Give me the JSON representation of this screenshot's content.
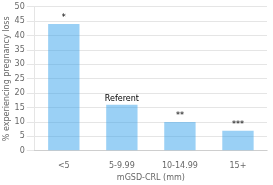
{
  "chart_data": {
    "type": "bar",
    "categories": [
      "<5",
      "5-9.99",
      "10-14.99",
      "15+"
    ],
    "values": [
      44,
      16,
      10,
      7
    ],
    "xlabel": "mGSD-CRL (mm)",
    "ylabel": "% experiencing pregnancy loss",
    "ylim": [
      0,
      50
    ],
    "yticks": [
      0,
      5,
      10,
      15,
      20,
      25,
      30,
      35,
      40,
      45,
      50
    ],
    "grid": true,
    "annotations": [
      {
        "text": "*",
        "category": "<5"
      },
      {
        "text": "Referent",
        "category": "5-9.99"
      },
      {
        "text": "**",
        "category": "10-14.99"
      },
      {
        "text": "***",
        "category": "15+"
      }
    ]
  }
}
